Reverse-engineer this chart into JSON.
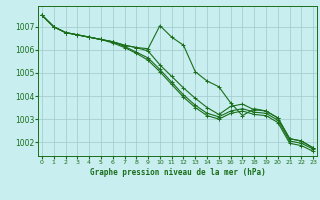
{
  "title": "Graphe pression niveau de la mer (hPa)",
  "background_color": "#c8eef0",
  "grid_color": "#a0caca",
  "line_color": "#1a6e1a",
  "x_ticks": [
    0,
    1,
    2,
    3,
    4,
    5,
    6,
    7,
    8,
    9,
    10,
    11,
    12,
    13,
    14,
    15,
    16,
    17,
    18,
    19,
    20,
    21,
    22,
    23
  ],
  "ylim": [
    1001.4,
    1007.9
  ],
  "yticks": [
    1002,
    1003,
    1004,
    1005,
    1006,
    1007
  ],
  "series1": [
    1007.5,
    1007.0,
    1006.75,
    1006.65,
    1006.55,
    1006.45,
    1006.35,
    1006.2,
    1006.1,
    1006.05,
    1007.05,
    1006.55,
    1006.2,
    1005.05,
    1004.65,
    1004.4,
    1003.7,
    1003.15,
    1003.45,
    1003.35,
    1003.05,
    1002.15,
    1002.05,
    1001.75
  ],
  "series2": [
    1007.5,
    1007.0,
    1006.75,
    1006.65,
    1006.55,
    1006.45,
    1006.35,
    1006.2,
    1006.1,
    1005.95,
    1005.35,
    1004.85,
    1004.35,
    1003.9,
    1003.5,
    1003.2,
    1003.55,
    1003.65,
    1003.4,
    1003.35,
    1003.05,
    1002.15,
    1002.05,
    1001.75
  ],
  "series3": [
    1007.5,
    1007.0,
    1006.75,
    1006.65,
    1006.55,
    1006.45,
    1006.35,
    1006.15,
    1005.9,
    1005.65,
    1005.15,
    1004.6,
    1004.05,
    1003.6,
    1003.25,
    1003.1,
    1003.35,
    1003.45,
    1003.3,
    1003.25,
    1002.95,
    1002.05,
    1001.95,
    1001.7
  ],
  "series4": [
    1007.5,
    1007.0,
    1006.75,
    1006.65,
    1006.55,
    1006.45,
    1006.3,
    1006.1,
    1005.85,
    1005.55,
    1005.05,
    1004.5,
    1003.95,
    1003.5,
    1003.15,
    1003.0,
    1003.25,
    1003.35,
    1003.2,
    1003.15,
    1002.85,
    1001.95,
    1001.85,
    1001.6
  ]
}
